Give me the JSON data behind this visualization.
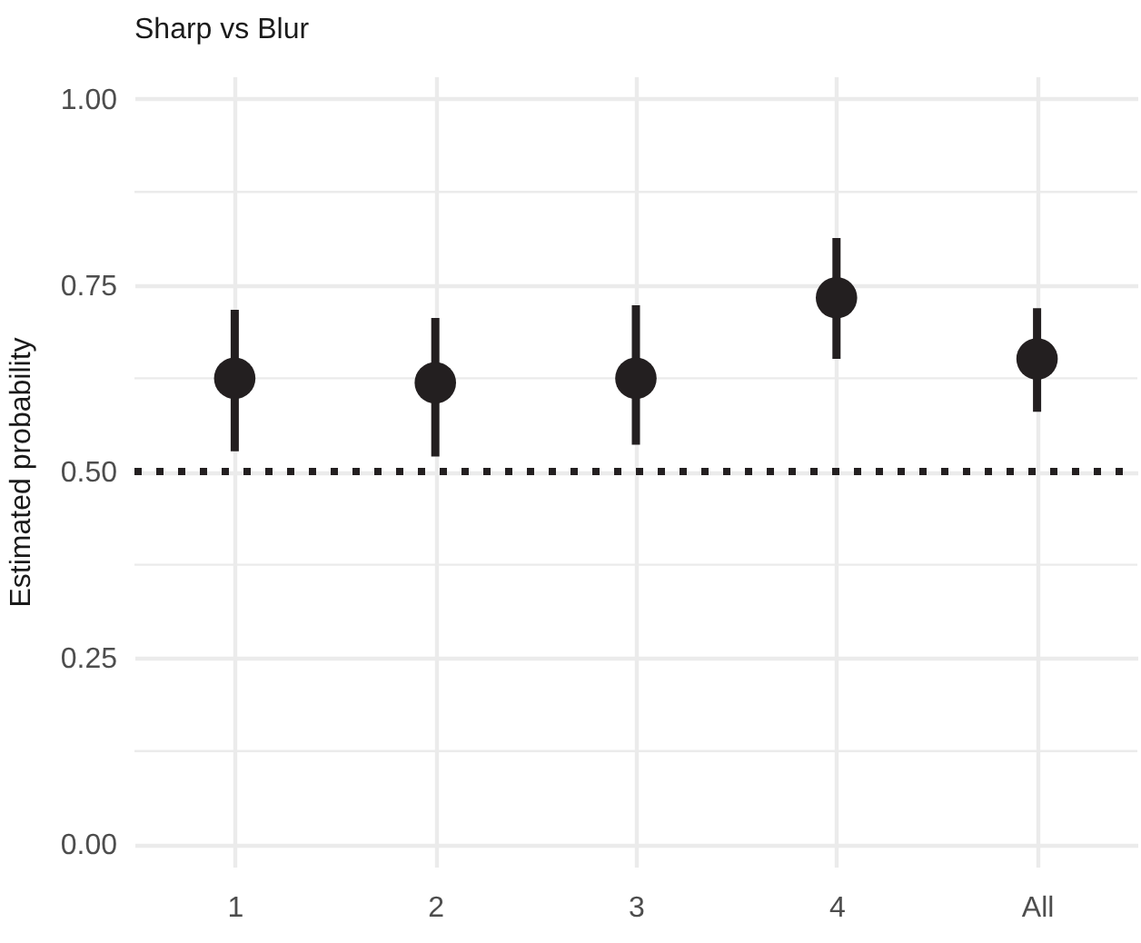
{
  "chart_data": {
    "type": "scatter",
    "title": "Sharp vs Blur",
    "ylabel": "Estimated probability",
    "categories": [
      "1",
      "2",
      "3",
      "4",
      "All"
    ],
    "series": [
      {
        "color": "#231f20",
        "values": [
          0.625,
          0.619,
          0.625,
          0.733,
          0.651
        ],
        "errors": [
          [
            0.527,
            0.717
          ],
          [
            0.52,
            0.706
          ],
          [
            0.536,
            0.723
          ],
          [
            0.651,
            0.813
          ],
          [
            0.58,
            0.719
          ]
        ]
      }
    ],
    "ylim": [
      -0.03,
      1.03
    ],
    "yticks": [
      {
        "value": 0,
        "label": "0.00"
      },
      {
        "value": 0.25,
        "label": "0.25"
      },
      {
        "value": 0.5,
        "label": "0.50"
      },
      {
        "value": 0.75,
        "label": "0.75"
      },
      {
        "value": 1,
        "label": "1.00"
      }
    ],
    "ref_lines": [
      {
        "axis": "y",
        "value": 0.5,
        "line_style": "dotted",
        "color": "#231f20"
      }
    ],
    "grid": true,
    "marker": "circle"
  }
}
